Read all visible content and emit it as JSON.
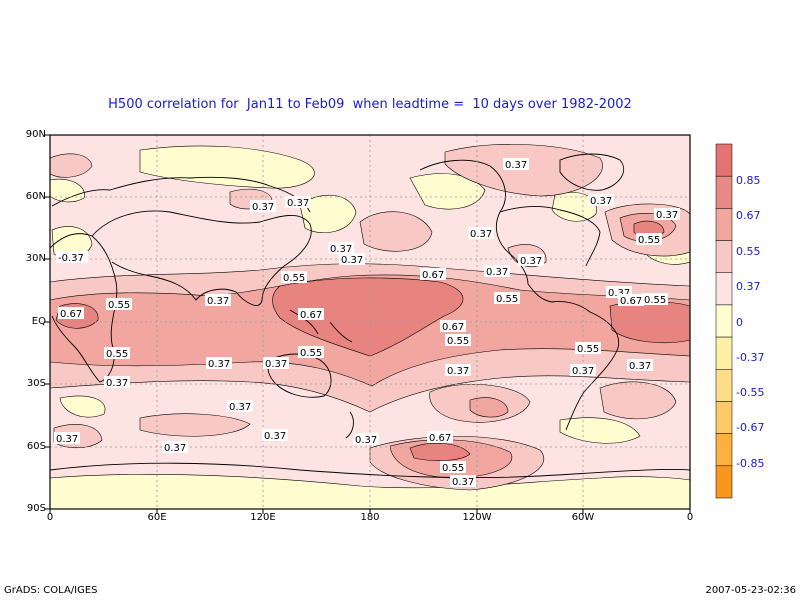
{
  "title": "H500 correlation for  Jan11 to Feb09  when leadtime =  10 days over 1982-2002",
  "footer": {
    "left": "GrADS: COLA/IGES",
    "right": "2007-05-23-02:36"
  },
  "axes": {
    "lat_labels": [
      "90N",
      "60N",
      "30N",
      "EQ",
      "30S",
      "60S",
      "90S"
    ],
    "lon_labels": [
      "0",
      "60E",
      "120E",
      "180",
      "120W",
      "60W",
      "0"
    ]
  },
  "colorbar": {
    "labels": [
      "0.85",
      "0.67",
      "0.55",
      "0.37",
      "0",
      "-0.37",
      "-0.55",
      "-0.67",
      "-0.85"
    ],
    "colors": [
      "#e57373",
      "#ea8a86",
      "#f2a6a0",
      "#f8c8c4",
      "#fde4e2",
      "#fffcd0",
      "#fff0a8",
      "#fddc8a",
      "#fdca6a",
      "#fcb040",
      "#f8961e"
    ]
  },
  "palette": {
    "neg": "#fffcd0",
    "c0": "#fde4e2",
    "c37": "#f8c8c4",
    "c55": "#f2a6a0",
    "c67": "#e88480"
  },
  "contour_labels": [
    {
      "t": "0.37"
    },
    {
      "t": "0.37"
    },
    {
      "t": "0.37"
    },
    {
      "t": "0.37"
    },
    {
      "t": "0.37"
    },
    {
      "t": "0.37"
    },
    {
      "t": "0.55"
    },
    {
      "t": "0.37"
    },
    {
      "t": "-0.37"
    },
    {
      "t": "0.37"
    },
    {
      "t": "0.37"
    },
    {
      "t": "0.37"
    },
    {
      "t": "0.67"
    },
    {
      "t": "0.37"
    },
    {
      "t": "0.55"
    },
    {
      "t": "0.55"
    },
    {
      "t": "0.37"
    },
    {
      "t": "0.67"
    },
    {
      "t": "0.67"
    },
    {
      "t": "0.55"
    },
    {
      "t": "0.67"
    },
    {
      "t": "0.55"
    },
    {
      "t": "0.55"
    },
    {
      "t": "0.67"
    },
    {
      "t": "0.55"
    },
    {
      "t": "0.55"
    },
    {
      "t": "0.37"
    },
    {
      "t": "0.37"
    },
    {
      "t": "0.37"
    },
    {
      "t": "0.37"
    },
    {
      "t": "0.37"
    },
    {
      "t": "0.55"
    },
    {
      "t": "0.37"
    },
    {
      "t": "0.37"
    },
    {
      "t": "0.37"
    },
    {
      "t": "0.37"
    },
    {
      "t": "0.37"
    },
    {
      "t": "0.37"
    },
    {
      "t": "0.67"
    },
    {
      "t": "0.55"
    },
    {
      "t": "0.37"
    }
  ]
}
